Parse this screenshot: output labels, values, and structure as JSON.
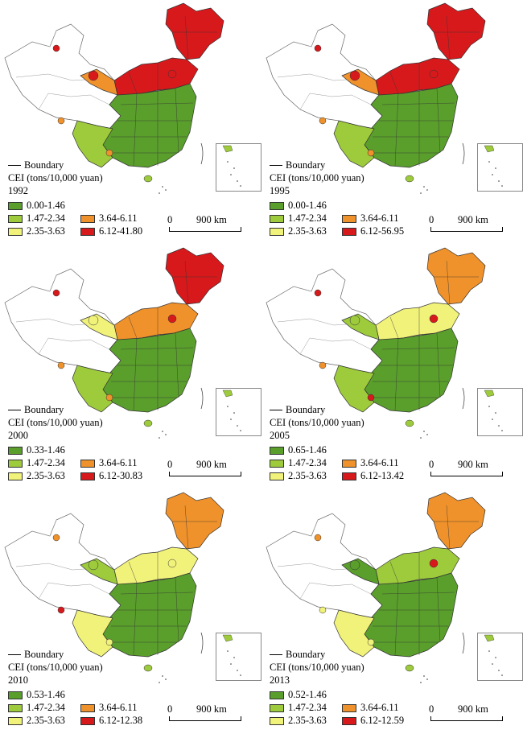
{
  "legend": {
    "boundary_label": "Boundary",
    "unit_label": "CEI (tons/10,000 yuan)",
    "colors": {
      "c1": "#5a9e2c",
      "c2": "#9dcb3c",
      "c3": "#f1f27a",
      "c4": "#f0922b",
      "c5": "#d7191c"
    },
    "scale_zero": "0",
    "scale_km": "900 km"
  },
  "panels": [
    {
      "year": "1992",
      "classes": [
        "0.00-1.46",
        "1.47-2.34",
        "2.35-3.63",
        "3.64-6.11",
        "6.12-41.80"
      ]
    },
    {
      "year": "1995",
      "classes": [
        "0.00-1.46",
        "1.47-2.34",
        "2.35-3.63",
        "3.64-6.11",
        "6.12-56.95"
      ]
    },
    {
      "year": "2000",
      "classes": [
        "0.33-1.46",
        "1.47-2.34",
        "2.35-3.63",
        "3.64-6.11",
        "6.12-30.83"
      ]
    },
    {
      "year": "2005",
      "classes": [
        "0.65-1.46",
        "1.47-2.34",
        "2.35-3.63",
        "3.64-6.11",
        "6.12-13.42"
      ]
    },
    {
      "year": "2010",
      "classes": [
        "0.53-1.46",
        "1.47-2.34",
        "2.35-3.63",
        "3.64-6.11",
        "6.12-12.38"
      ]
    },
    {
      "year": "2013",
      "classes": [
        "0.52-1.46",
        "1.47-2.34",
        "2.35-3.63",
        "3.64-6.11",
        "6.12-12.59"
      ]
    }
  ]
}
